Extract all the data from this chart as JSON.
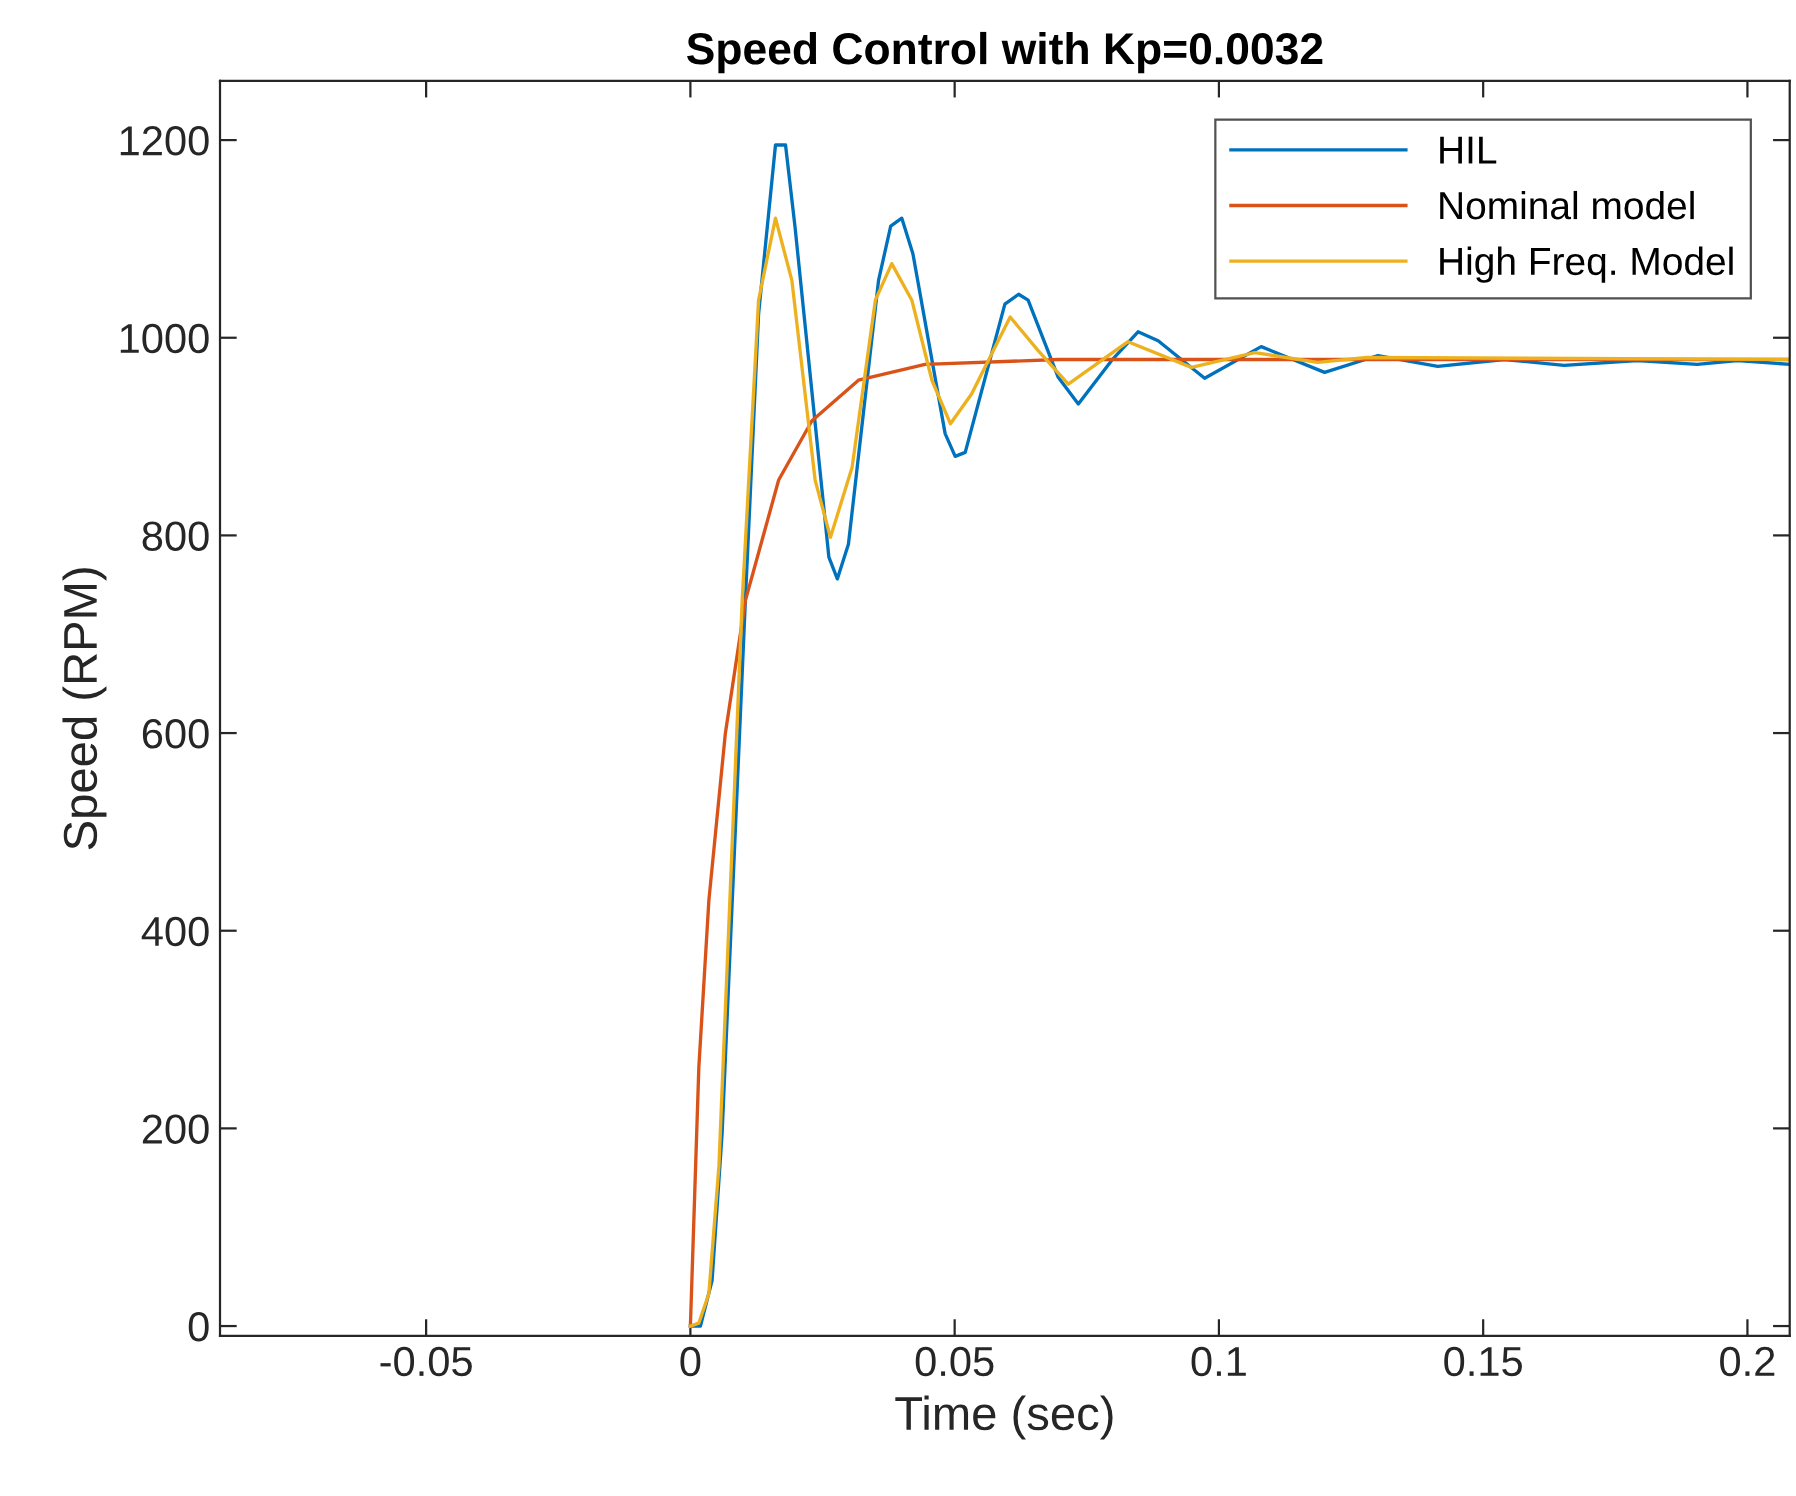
{
  "chart_data": {
    "type": "line",
    "title": "Speed Control with Kp=0.0032",
    "xlabel": "Time (sec)",
    "ylabel": "Speed (RPM)",
    "xlim": [
      -0.089,
      0.208
    ],
    "ylim": [
      -10,
      1260
    ],
    "xticks": [
      -0.05,
      0,
      0.05,
      0.1,
      0.15,
      0.2
    ],
    "yticks": [
      0,
      200,
      400,
      600,
      800,
      1000,
      1200
    ],
    "grid": false,
    "legend": "top right",
    "marker": "none",
    "line_style": "solid",
    "series": [
      {
        "name": "HIL",
        "color": "#0072bd",
        "x": [
          0,
          0.0019,
          0.0041,
          0.006,
          0.0104,
          0.0129,
          0.0161,
          0.018,
          0.0198,
          0.0262,
          0.0278,
          0.0299,
          0.0356,
          0.0379,
          0.04,
          0.0421,
          0.0482,
          0.0501,
          0.052,
          0.0595,
          0.0621,
          0.0639,
          0.0696,
          0.0734,
          0.0797,
          0.0847,
          0.0885,
          0.0973,
          0.108,
          0.12,
          0.1301,
          0.1414,
          0.154,
          0.1653,
          0.1792,
          0.1905,
          0.1981,
          0.208
        ],
        "values": [
          0,
          0,
          46,
          195,
          734,
          1024,
          1195,
          1195,
          1112,
          778,
          756,
          791,
          1058,
          1113,
          1121,
          1085,
          903,
          880,
          884,
          1034,
          1044,
          1038,
          960,
          933,
          977,
          1006,
          997,
          959,
          991,
          965,
          982,
          971,
          978,
          972,
          977,
          973,
          977,
          973
        ]
      },
      {
        "name": "Nominal model",
        "color": "#d95319",
        "x": [
          0,
          0.0016,
          0.0035,
          0.0066,
          0.0104,
          0.0167,
          0.023,
          0.0318,
          0.0444,
          0.0696,
          0.208
        ],
        "values": [
          0,
          262,
          431,
          599,
          734,
          856,
          916,
          957,
          973,
          978,
          978
        ]
      },
      {
        "name": "High Freq. Model",
        "color": "#edb120",
        "x": [
          0,
          0.0016,
          0.0035,
          0.0054,
          0.0098,
          0.0129,
          0.0161,
          0.0192,
          0.0236,
          0.0265,
          0.0306,
          0.035,
          0.0381,
          0.0419,
          0.0457,
          0.0492,
          0.0532,
          0.0605,
          0.0658,
          0.0715,
          0.0828,
          0.0948,
          0.1068,
          0.1187,
          0.128,
          0.208
        ],
        "values": [
          0,
          3,
          33,
          162,
          734,
          1038,
          1121,
          1058,
          856,
          798,
          869,
          1038,
          1075,
          1038,
          957,
          913,
          943,
          1021,
          987,
          953,
          996,
          970,
          985,
          975,
          980,
          978
        ]
      }
    ]
  }
}
